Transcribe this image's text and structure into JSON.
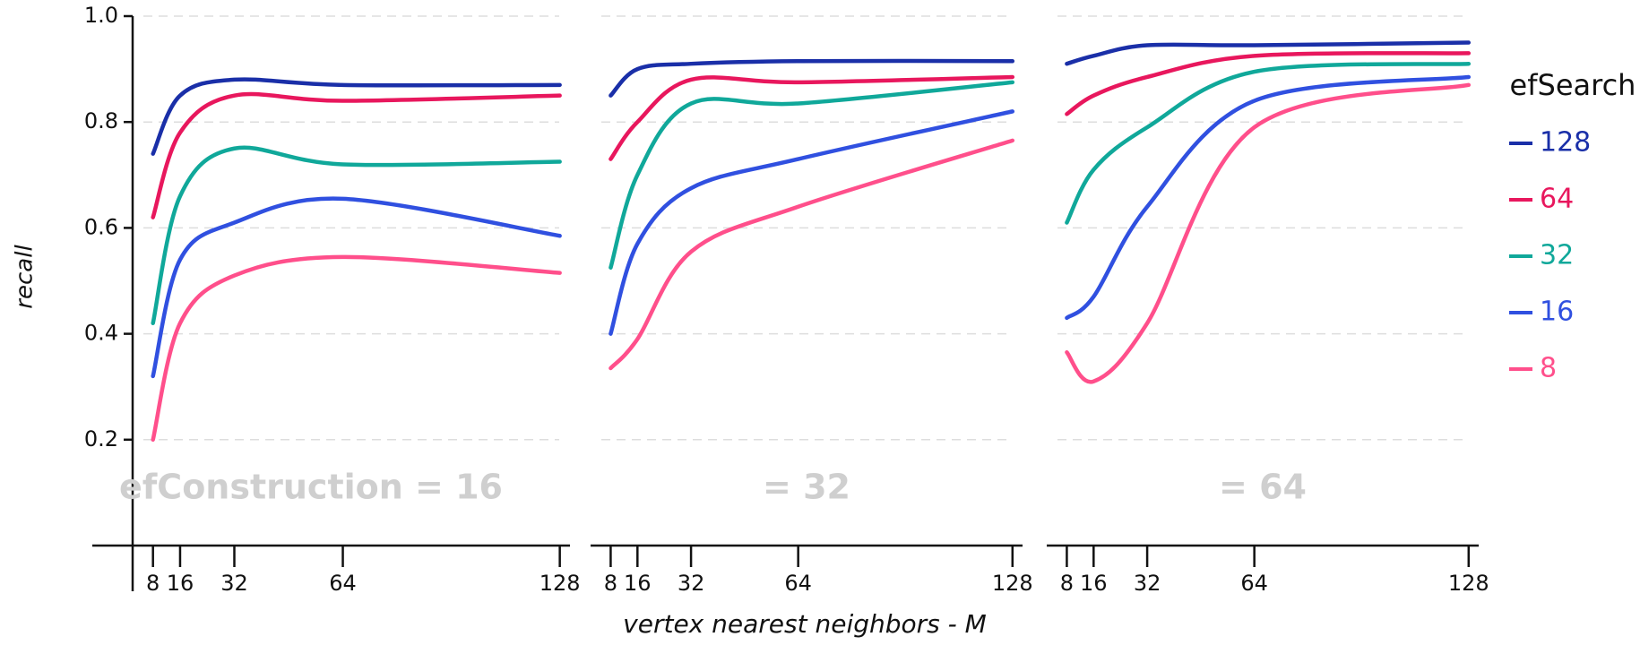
{
  "chart_data": [
    {
      "type": "line",
      "ylabel": "recall",
      "annotation": "efConstruction = 16",
      "x": [
        8,
        16,
        32,
        64,
        128
      ],
      "xlim": [
        2,
        131
      ],
      "xticks": [
        8,
        16,
        32,
        64,
        128
      ],
      "ylim": [
        0,
        1
      ],
      "yticks": [
        0.2,
        0.4,
        0.6,
        0.8,
        {
          "value": 1,
          "label": "1.0"
        }
      ],
      "grid": true,
      "series": [
        {
          "color": "#1a2fa8",
          "values": [
            0.74,
            0.85,
            0.88,
            0.87,
            0.87
          ]
        },
        {
          "color": "#e8175d",
          "values": [
            0.62,
            0.78,
            0.85,
            0.84,
            0.85
          ]
        },
        {
          "color": "#10a89a",
          "values": [
            0.42,
            0.66,
            0.75,
            0.72,
            0.725
          ]
        },
        {
          "color": "#3050e0",
          "values": [
            0.32,
            0.54,
            0.61,
            0.655,
            0.585
          ]
        },
        {
          "color": "#ff4f8b",
          "values": [
            0.2,
            0.42,
            0.51,
            0.545,
            0.515
          ]
        }
      ]
    },
    {
      "type": "line",
      "xlabel": "vertex nearest neighbors - M",
      "annotation": "= 32",
      "x": [
        8,
        16,
        32,
        64,
        128
      ],
      "xlim": [
        2,
        131
      ],
      "xticks": [
        8,
        16,
        32,
        64,
        128
      ],
      "ylim": [
        0,
        1
      ],
      "yticks": [
        0.2,
        0.4,
        0.6,
        0.8,
        1
      ],
      "grid": true,
      "series": [
        {
          "color": "#1a2fa8",
          "values": [
            0.85,
            0.9,
            0.91,
            0.915,
            0.915
          ]
        },
        {
          "color": "#e8175d",
          "values": [
            0.73,
            0.8,
            0.88,
            0.875,
            0.885
          ]
        },
        {
          "color": "#10a89a",
          "values": [
            0.525,
            0.7,
            0.835,
            0.835,
            0.875
          ]
        },
        {
          "color": "#3050e0",
          "values": [
            0.4,
            0.57,
            0.675,
            0.73,
            0.82
          ]
        },
        {
          "color": "#ff4f8b",
          "values": [
            0.335,
            0.39,
            0.555,
            0.64,
            0.765
          ]
        }
      ]
    },
    {
      "type": "line",
      "legend_title": "efSearch",
      "annotation": "= 64",
      "x": [
        8,
        16,
        32,
        64,
        128
      ],
      "xlim": [
        2,
        131
      ],
      "xticks": [
        8,
        16,
        32,
        64,
        128
      ],
      "ylim": [
        0,
        1
      ],
      "yticks": [
        0.2,
        0.4,
        0.6,
        0.8,
        1
      ],
      "grid": true,
      "series": [
        {
          "name": "128",
          "color": "#1a2fa8",
          "values": [
            0.91,
            0.925,
            0.945,
            0.945,
            0.95
          ]
        },
        {
          "name": "64",
          "color": "#e8175d",
          "values": [
            0.815,
            0.85,
            0.885,
            0.925,
            0.93
          ]
        },
        {
          "name": "32",
          "color": "#10a89a",
          "values": [
            0.61,
            0.71,
            0.79,
            0.895,
            0.91
          ]
        },
        {
          "name": "16",
          "color": "#3050e0",
          "values": [
            0.43,
            0.47,
            0.64,
            0.84,
            0.885
          ]
        },
        {
          "name": "8",
          "color": "#ff4f8b",
          "values": [
            0.365,
            0.31,
            0.42,
            0.79,
            0.87
          ]
        }
      ]
    }
  ]
}
